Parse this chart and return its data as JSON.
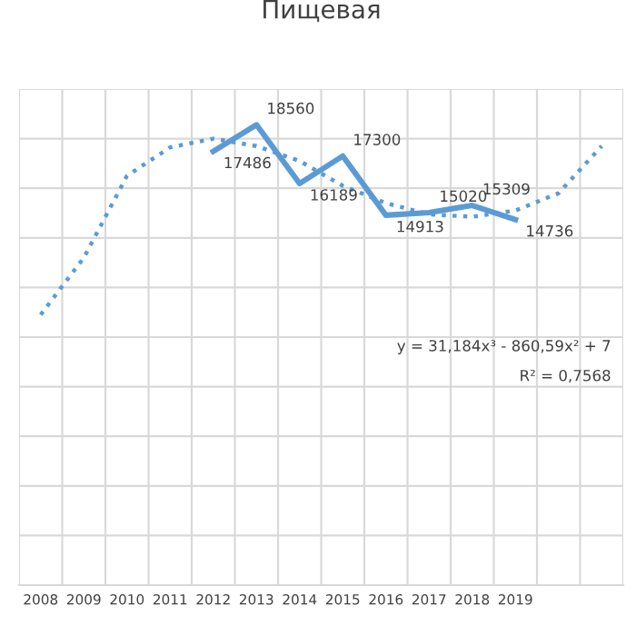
{
  "chart_data": {
    "type": "line",
    "title": "Пищевая",
    "categories": [
      "2008",
      "2009",
      "2010",
      "2011",
      "2012",
      "2013",
      "2014",
      "2015",
      "2016",
      "2017",
      "2018",
      "2019",
      null,
      null
    ],
    "series": [
      {
        "color": "#5b9bd5",
        "line_style": "solid",
        "values": [
          null,
          null,
          null,
          null,
          17486,
          18560,
          16189,
          17300,
          14913,
          15020,
          15309,
          14736,
          null,
          null
        ],
        "value_labels": [
          null,
          null,
          null,
          null,
          "17486",
          "18560",
          "16189",
          "17300",
          "14913",
          "15020",
          "15309",
          "14736",
          null,
          null
        ]
      },
      {
        "type": "line",
        "color": "#5b9bd5",
        "line_style": "dotted",
        "values": [
          10900,
          13200,
          16500,
          17650,
          18000,
          17700,
          17100,
          16100,
          15400,
          14950,
          14850,
          15100,
          15800,
          17700
        ]
      }
    ],
    "ylim": [
      0,
      20000
    ],
    "yticks": [
      {
        "value": 0,
        "label": null
      },
      {
        "value": 2000,
        "label": null
      },
      {
        "value": 4000,
        "label": null
      },
      {
        "value": 6000,
        "label": null
      },
      {
        "value": 8000,
        "label": null
      },
      {
        "value": 10000,
        "label": null
      },
      {
        "value": 12000,
        "label": null
      },
      {
        "value": 14000,
        "label": null
      },
      {
        "value": 16000,
        "label": null
      },
      {
        "value": 18000,
        "label": null
      },
      {
        "value": 20000,
        "label": null
      }
    ],
    "tick_labels": "x",
    "grid": true,
    "legend": false,
    "annotations": [
      "y = 31,184x³ - 860,59x² + 7",
      "R² = 0,7568"
    ]
  }
}
